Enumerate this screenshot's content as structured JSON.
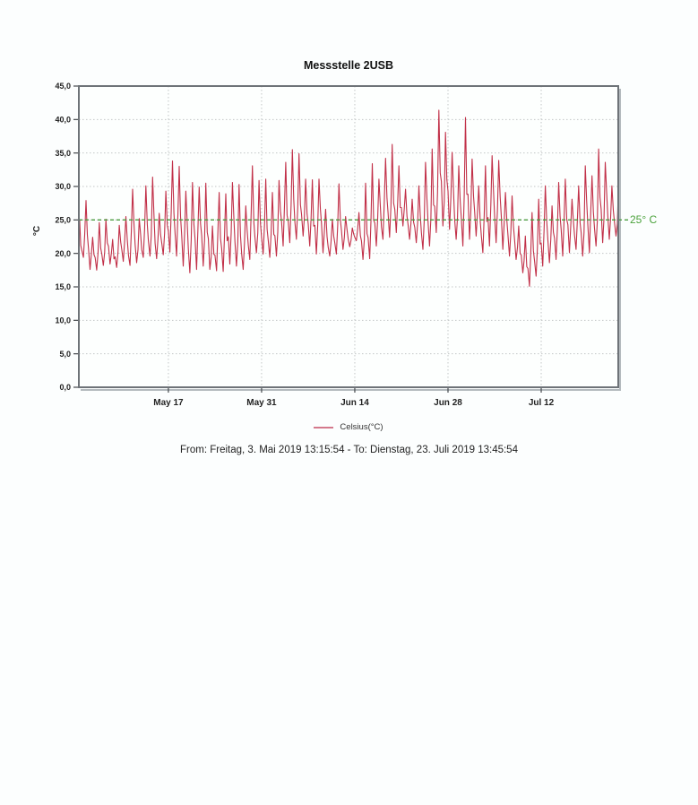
{
  "page": {
    "background": "#fcfefe"
  },
  "chart_data": {
    "type": "line",
    "title": "Messstelle 2USB",
    "ylabel": "°C",
    "xlabel": "",
    "ylim": [
      0,
      45
    ],
    "grid": true,
    "series_color": "#c13048",
    "legend": {
      "label": "Celsius(°C)",
      "position": "bottom",
      "sample_color": "#d4798c"
    },
    "caption": "From: Freitag, 3. Mai 2019 13:15:54 - To: Dienstag, 23. Juli 2019 13:45:54",
    "threshold": {
      "value": 25,
      "label": "25° C",
      "color": "#4a9c3f"
    },
    "x_total_days": 81.02,
    "x_ticks": [
      {
        "day": 13.4473,
        "label": "May 17"
      },
      {
        "day": 27.4473,
        "label": "May 31"
      },
      {
        "day": 41.4473,
        "label": "Jun 14"
      },
      {
        "day": 55.4473,
        "label": "Jun 28"
      },
      {
        "day": 69.4473,
        "label": "Jul 12"
      }
    ],
    "y_ticks": [
      {
        "v": 0,
        "label": "0,0"
      },
      {
        "v": 5,
        "label": "5,0"
      },
      {
        "v": 10,
        "label": "10,0"
      },
      {
        "v": 15,
        "label": "15,0"
      },
      {
        "v": 20,
        "label": "20,0"
      },
      {
        "v": 25,
        "label": "25,0"
      },
      {
        "v": 30,
        "label": "30,0"
      },
      {
        "v": 35,
        "label": "35,0"
      },
      {
        "v": 40,
        "label": "40,0"
      },
      {
        "v": 45,
        "label": "45,0"
      }
    ],
    "daily": [
      {
        "date": "May 3",
        "max": 25.0,
        "min": 19.4
      },
      {
        "date": "May 4",
        "max": 27.9,
        "min": 17.6
      },
      {
        "date": "May 5",
        "max": 22.4,
        "min": 17.5
      },
      {
        "date": "May 6",
        "max": 24.6,
        "min": 18.2
      },
      {
        "date": "May 7",
        "max": 25.1,
        "min": 18.4
      },
      {
        "date": "May 8",
        "max": 22.1,
        "min": 17.9
      },
      {
        "date": "May 9",
        "max": 24.2,
        "min": 18.8
      },
      {
        "date": "May 10",
        "max": 25.5,
        "min": 18.2
      },
      {
        "date": "May 11",
        "max": 29.6,
        "min": 18.6
      },
      {
        "date": "May 12",
        "max": 25.2,
        "min": 19.4
      },
      {
        "date": "May 13",
        "max": 30.1,
        "min": 19.6
      },
      {
        "date": "May 14",
        "max": 31.4,
        "min": 19.2
      },
      {
        "date": "May 15",
        "max": 26.0,
        "min": 19.8
      },
      {
        "date": "May 16",
        "max": 29.3,
        "min": 20.2
      },
      {
        "date": "May 17",
        "max": 33.8,
        "min": 19.6
      },
      {
        "date": "May 18",
        "max": 33.0,
        "min": 18.1
      },
      {
        "date": "May 19",
        "max": 29.3,
        "min": 17.1
      },
      {
        "date": "May 20",
        "max": 30.6,
        "min": 17.6
      },
      {
        "date": "May 21",
        "max": 29.9,
        "min": 18.1
      },
      {
        "date": "May 22",
        "max": 30.5,
        "min": 17.6
      },
      {
        "date": "May 23",
        "max": 24.1,
        "min": 17.4
      },
      {
        "date": "May 24",
        "max": 29.1,
        "min": 17.3
      },
      {
        "date": "May 25",
        "max": 28.9,
        "min": 18.4
      },
      {
        "date": "May 26",
        "max": 30.6,
        "min": 18.1
      },
      {
        "date": "May 27",
        "max": 30.3,
        "min": 17.6
      },
      {
        "date": "May 28",
        "max": 27.1,
        "min": 19.1
      },
      {
        "date": "May 29",
        "max": 33.1,
        "min": 20.1
      },
      {
        "date": "May 30",
        "max": 30.9,
        "min": 19.9
      },
      {
        "date": "May 31",
        "max": 31.1,
        "min": 19.4
      },
      {
        "date": "Jun 1",
        "max": 29.1,
        "min": 19.6
      },
      {
        "date": "Jun 2",
        "max": 30.9,
        "min": 21.1
      },
      {
        "date": "Jun 3",
        "max": 33.6,
        "min": 21.6
      },
      {
        "date": "Jun 4",
        "max": 35.5,
        "min": 22.1
      },
      {
        "date": "Jun 5",
        "max": 34.9,
        "min": 22.6
      },
      {
        "date": "Jun 6",
        "max": 31.1,
        "min": 21.1
      },
      {
        "date": "Jun 7",
        "max": 31.0,
        "min": 19.9
      },
      {
        "date": "Jun 8",
        "max": 31.1,
        "min": 20.1
      },
      {
        "date": "Jun 9",
        "max": 26.6,
        "min": 19.6
      },
      {
        "date": "Jun 10",
        "max": 25.1,
        "min": 19.9
      },
      {
        "date": "Jun 11",
        "max": 30.4,
        "min": 20.6
      },
      {
        "date": "Jun 12",
        "max": 25.5,
        "min": 21.0
      },
      {
        "date": "Jun 13",
        "max": 23.8,
        "min": 21.9
      },
      {
        "date": "Jun 14",
        "max": 26.1,
        "min": 19.1
      },
      {
        "date": "Jun 15",
        "max": 30.5,
        "min": 19.2
      },
      {
        "date": "Jun 16",
        "max": 33.4,
        "min": 21.1
      },
      {
        "date": "Jun 17",
        "max": 31.1,
        "min": 22.1
      },
      {
        "date": "Jun 18",
        "max": 34.2,
        "min": 22.4
      },
      {
        "date": "Jun 19",
        "max": 36.3,
        "min": 23.1
      },
      {
        "date": "Jun 20",
        "max": 33.1,
        "min": 24.1
      },
      {
        "date": "Jun 21",
        "max": 29.6,
        "min": 22.1
      },
      {
        "date": "Jun 22",
        "max": 28.1,
        "min": 21.6
      },
      {
        "date": "Jun 23",
        "max": 30.1,
        "min": 20.6
      },
      {
        "date": "Jun 24",
        "max": 33.6,
        "min": 21.1
      },
      {
        "date": "Jun 25",
        "max": 35.6,
        "min": 23.1
      },
      {
        "date": "Jun 26",
        "max": 41.4,
        "min": 24.1
      },
      {
        "date": "Jun 27",
        "max": 38.1,
        "min": 23.6
      },
      {
        "date": "Jun 28",
        "max": 35.1,
        "min": 22.1
      },
      {
        "date": "Jun 29",
        "max": 33.1,
        "min": 21.1
      },
      {
        "date": "Jun 30",
        "max": 40.3,
        "min": 22.1
      },
      {
        "date": "Jul 1",
        "max": 34.1,
        "min": 22.6
      },
      {
        "date": "Jul 2",
        "max": 30.1,
        "min": 20.1
      },
      {
        "date": "Jul 3",
        "max": 33.1,
        "min": 21.1
      },
      {
        "date": "Jul 4",
        "max": 34.6,
        "min": 21.6
      },
      {
        "date": "Jul 5",
        "max": 33.9,
        "min": 20.6
      },
      {
        "date": "Jul 6",
        "max": 29.1,
        "min": 19.6
      },
      {
        "date": "Jul 7",
        "max": 28.6,
        "min": 19.1
      },
      {
        "date": "Jul 8",
        "max": 24.1,
        "min": 17.1
      },
      {
        "date": "Jul 9",
        "max": 22.6,
        "min": 15.1
      },
      {
        "date": "Jul 10",
        "max": 26.1,
        "min": 16.6
      },
      {
        "date": "Jul 11",
        "max": 28.1,
        "min": 18.1
      },
      {
        "date": "Jul 12",
        "max": 30.1,
        "min": 18.6
      },
      {
        "date": "Jul 13",
        "max": 27.1,
        "min": 19.1
      },
      {
        "date": "Jul 14",
        "max": 30.6,
        "min": 19.6
      },
      {
        "date": "Jul 15",
        "max": 31.1,
        "min": 20.1
      },
      {
        "date": "Jul 16",
        "max": 28.1,
        "min": 20.6
      },
      {
        "date": "Jul 17",
        "max": 30.1,
        "min": 19.6
      },
      {
        "date": "Jul 18",
        "max": 33.1,
        "min": 20.1
      },
      {
        "date": "Jul 19",
        "max": 31.6,
        "min": 21.1
      },
      {
        "date": "Jul 20",
        "max": 35.6,
        "min": 21.6
      },
      {
        "date": "Jul 21",
        "max": 33.6,
        "min": 22.1
      },
      {
        "date": "Jul 22",
        "max": 30.1,
        "min": 22.6
      },
      {
        "date": "Jul 23",
        "max": 29.3,
        "min": null
      }
    ]
  }
}
